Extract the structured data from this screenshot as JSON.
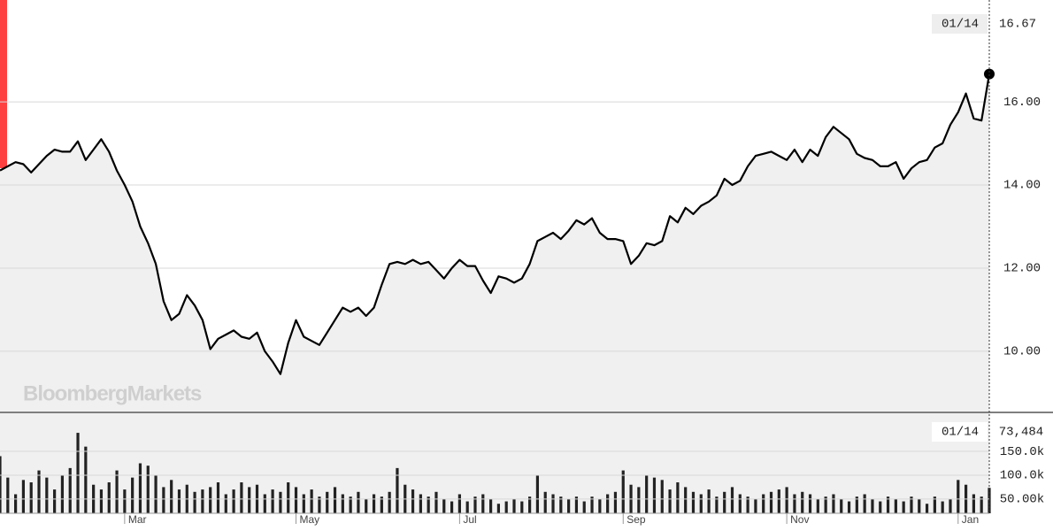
{
  "chart_data": [
    {
      "type": "line",
      "watermark": "BloombergMarkets",
      "crosshair_label": "01/14",
      "series": [
        {
          "name": null,
          "color": "#000000",
          "values": [
            14.35,
            14.45,
            14.55,
            14.5,
            14.3,
            14.5,
            14.7,
            14.85,
            14.8,
            14.8,
            15.05,
            14.6,
            14.85,
            15.1,
            14.8,
            14.35,
            14.0,
            13.6,
            13.0,
            12.6,
            12.1,
            11.2,
            10.75,
            10.9,
            11.35,
            11.1,
            10.75,
            10.05,
            10.3,
            10.4,
            10.5,
            10.35,
            10.3,
            10.45,
            10.0,
            9.75,
            9.45,
            10.2,
            10.75,
            10.35,
            10.25,
            10.15,
            10.45,
            10.75,
            11.05,
            10.95,
            11.05,
            10.85,
            11.05,
            11.6,
            12.1,
            12.15,
            12.1,
            12.2,
            12.1,
            12.15,
            11.95,
            11.75,
            12.0,
            12.2,
            12.05,
            12.05,
            11.7,
            11.4,
            11.8,
            11.75,
            11.65,
            11.75,
            12.1,
            12.65,
            12.75,
            12.85,
            12.7,
            12.9,
            13.15,
            13.05,
            13.2,
            12.85,
            12.7,
            12.7,
            12.65,
            12.1,
            12.3,
            12.6,
            12.55,
            12.65,
            13.25,
            13.1,
            13.45,
            13.3,
            13.5,
            13.6,
            13.75,
            14.15,
            14.0,
            14.1,
            14.45,
            14.7,
            14.75,
            14.8,
            14.7,
            14.6,
            14.85,
            14.55,
            14.85,
            14.7,
            15.15,
            15.4,
            15.25,
            15.1,
            14.75,
            14.65,
            14.6,
            14.45,
            14.45,
            14.55,
            14.15,
            14.4,
            14.55,
            14.6,
            14.9,
            15.0,
            15.45,
            15.75,
            16.2,
            15.6,
            15.55,
            16.67
          ]
        }
      ],
      "fill": "#f0f0f0",
      "ylim": [
        8.55,
        18.45
      ],
      "yticks": [
        {
          "value": 10,
          "label": "10.00"
        },
        {
          "value": 12,
          "label": "12.00"
        },
        {
          "value": 14,
          "label": "14.00"
        },
        {
          "value": 16,
          "label": "16.00"
        }
      ],
      "grid": true
    },
    {
      "type": "bar",
      "crosshair_label": "01/14",
      "categories": [
        null,
        null,
        null,
        null,
        null,
        null,
        null,
        null,
        null,
        null,
        null,
        null,
        null,
        null,
        null,
        null,
        "Mar",
        null,
        null,
        null,
        null,
        null,
        null,
        null,
        null,
        null,
        null,
        null,
        null,
        null,
        null,
        null,
        null,
        null,
        null,
        null,
        null,
        null,
        "May",
        null,
        null,
        null,
        null,
        null,
        null,
        null,
        null,
        null,
        null,
        null,
        null,
        null,
        null,
        null,
        null,
        null,
        null,
        null,
        null,
        "Jul",
        null,
        null,
        null,
        null,
        null,
        null,
        null,
        null,
        null,
        null,
        null,
        null,
        null,
        null,
        null,
        null,
        null,
        null,
        null,
        null,
        "Sep",
        null,
        null,
        null,
        null,
        null,
        null,
        null,
        null,
        null,
        null,
        null,
        null,
        null,
        null,
        null,
        null,
        null,
        null,
        null,
        null,
        "Nov",
        null,
        null,
        null,
        null,
        null,
        null,
        null,
        null,
        null,
        null,
        null,
        null,
        null,
        null,
        null,
        null,
        null,
        null,
        null,
        null,
        null,
        "Jan",
        null,
        null,
        null,
        null
      ],
      "values": [
        140000,
        95000,
        60000,
        90000,
        85000,
        110000,
        95000,
        70000,
        100000,
        115000,
        189000,
        160000,
        80000,
        70000,
        85000,
        110000,
        70000,
        95000,
        125000,
        120000,
        100000,
        75000,
        90000,
        70000,
        80000,
        65000,
        70000,
        75000,
        85000,
        60000,
        70000,
        85000,
        75000,
        80000,
        60000,
        70000,
        65000,
        85000,
        75000,
        60000,
        70000,
        55000,
        65000,
        75000,
        60000,
        55000,
        65000,
        50000,
        60000,
        55000,
        65000,
        115000,
        80000,
        70000,
        60000,
        55000,
        65000,
        50000,
        45000,
        60000,
        45000,
        55000,
        60000,
        50000,
        40000,
        45000,
        50000,
        45000,
        55000,
        100000,
        65000,
        60000,
        55000,
        50000,
        55000,
        45000,
        55000,
        50000,
        60000,
        65000,
        110000,
        80000,
        75000,
        100000,
        95000,
        90000,
        70000,
        85000,
        75000,
        65000,
        60000,
        70000,
        55000,
        65000,
        75000,
        60000,
        55000,
        50000,
        60000,
        65000,
        70000,
        75000,
        60000,
        65000,
        60000,
        50000,
        55000,
        60000,
        50000,
        45000,
        55000,
        60000,
        50000,
        45000,
        55000,
        50000,
        45000,
        55000,
        50000,
        40000,
        55000,
        45000,
        50000,
        90000,
        80000,
        60000,
        55000,
        73484
      ],
      "value_labels": [
        null,
        null,
        null,
        null,
        null,
        null,
        null,
        null,
        null,
        null,
        null,
        null,
        null,
        null,
        null,
        null,
        null,
        null,
        null,
        null,
        null,
        null,
        null,
        null,
        null,
        null,
        null,
        null,
        null,
        null,
        null,
        null,
        null,
        null,
        null,
        null,
        null,
        null,
        null,
        null,
        null,
        null,
        null,
        null,
        null,
        null,
        null,
        null,
        null,
        null,
        null,
        null,
        null,
        null,
        null,
        null,
        null,
        null,
        null,
        null,
        null,
        null,
        null,
        null,
        null,
        null,
        null,
        null,
        null,
        null,
        null,
        null,
        null,
        null,
        null,
        null,
        null,
        null,
        null,
        null,
        null,
        null,
        null,
        null,
        null,
        null,
        null,
        null,
        null,
        null,
        null,
        null,
        null,
        null,
        null,
        null,
        null,
        null,
        null,
        null,
        null,
        null,
        null,
        null,
        null,
        null,
        null,
        null,
        null,
        null,
        null,
        null,
        null,
        null,
        null,
        null,
        null,
        null,
        null,
        null,
        null,
        null,
        null,
        null,
        null,
        null,
        null,
        "73,484"
      ],
      "color": "#222222",
      "ylim": [
        20000,
        230000
      ],
      "yticks": [
        {
          "value": 50000,
          "label": "50.00k"
        },
        {
          "value": 100000,
          "label": "100.0k"
        },
        {
          "value": 150000,
          "label": "150.0k"
        }
      ],
      "grid": true
    }
  ]
}
